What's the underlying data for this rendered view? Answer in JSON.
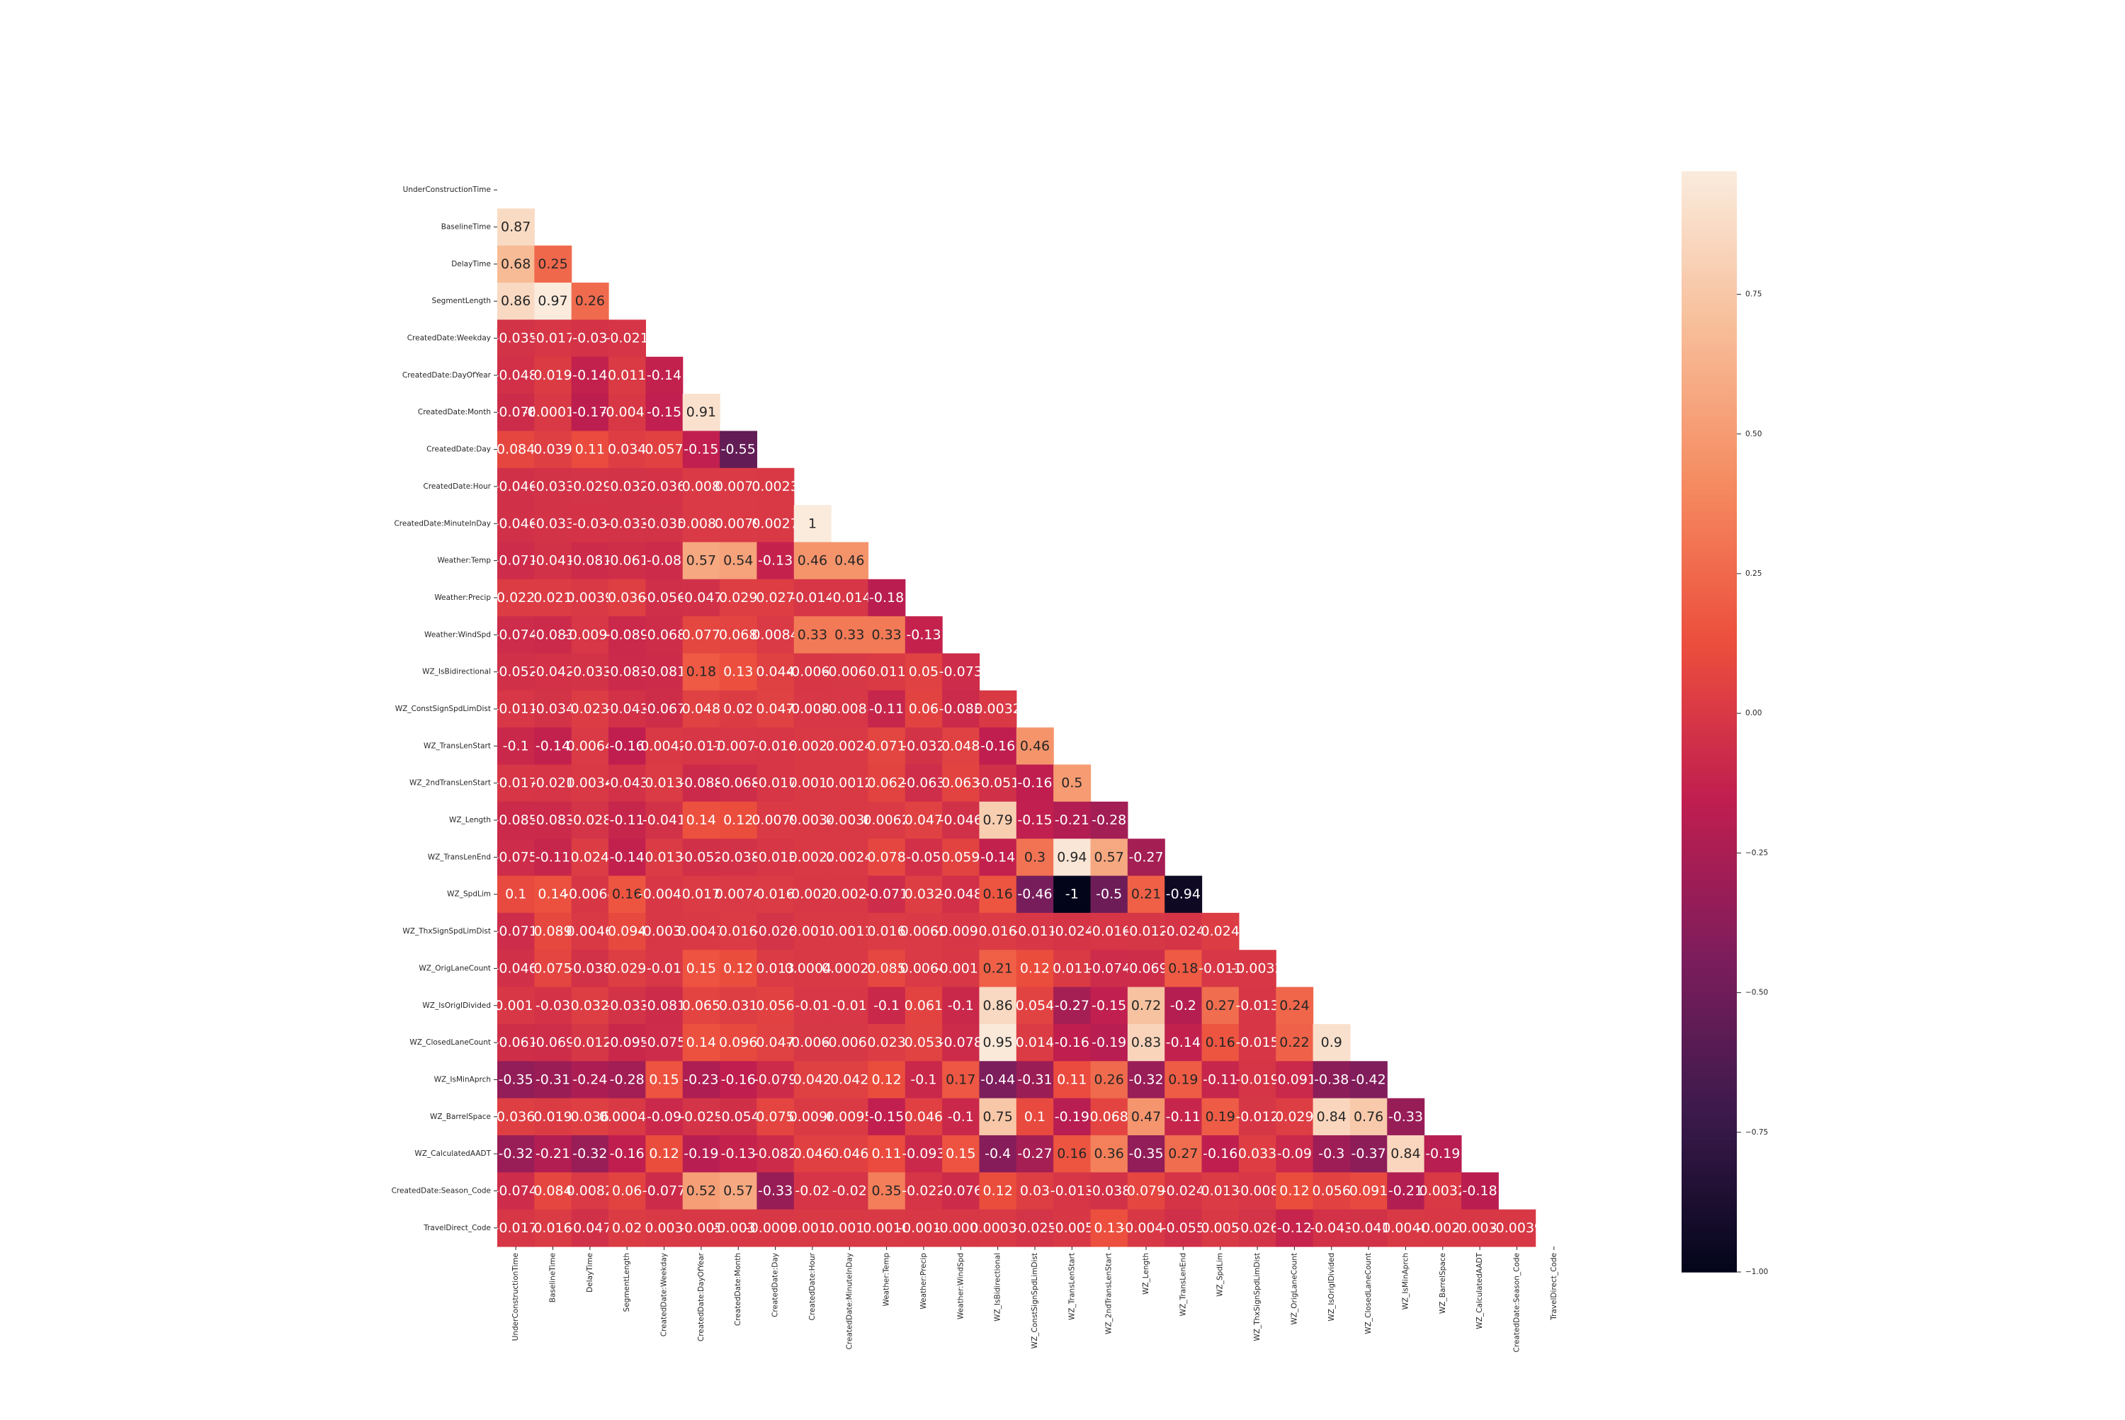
{
  "chart_data": {
    "type": "heatmap",
    "title": "",
    "xlabel": "",
    "ylabel": "",
    "variables": [
      "UnderConstructionTime",
      "BaselineTime",
      "DelayTime",
      "SegmentLength",
      "CreatedDate:Weekday",
      "CreatedDate:DayOfYear",
      "CreatedDate:Month",
      "CreatedDate:Day",
      "CreatedDate:Hour",
      "CreatedDate:MinuteInDay",
      "Weather:Temp",
      "Weather:Precip",
      "Weather:WindSpd",
      "WZ_IsBidirectional",
      "WZ_ConstSignSpdLimDist",
      "WZ_TransLenStart",
      "WZ_2ndTransLenStart",
      "WZ_Length",
      "WZ_TransLenEnd",
      "WZ_SpdLim",
      "WZ_ThxSignSpdLimDist",
      "WZ_OrigLaneCount",
      "WZ_IsOrigIDivided",
      "WZ_ClosedLaneCount",
      "WZ_IsMinAprch",
      "WZ_BarrelSpace",
      "WZ_CalculatedAADT",
      "CreatedDate:Season_Code",
      "TravelDirect_Code"
    ],
    "x_tick_labels": [
      "UnderConstructionTime",
      "BaselineTime",
      "DelayTime",
      "SegmentLength",
      "CreatedDate:Weekday",
      "CreatedDate:DayOfYear",
      "CreatedDate:Month",
      "CreatedDate:Day",
      "CreatedDate:Hour",
      "CreatedDate:MinuteInDay",
      "Weather:Temp",
      "Weather:Precip",
      "Weather:WindSpd",
      "WZ_IsBidirectional",
      "WZ_ConstSignSpdLimDist",
      "WZ_TransLenStart",
      "WZ_2ndTransLenStart",
      "WZ_Length",
      "WZ_TransLenEnd",
      "WZ_SpdLim",
      "WZ_ThxSignSpdLimDist",
      "WZ_OrigLaneCount",
      "WZ_IsOrigIDivided",
      "WZ_ClosedLaneCount",
      "WZ_IsMinAprch",
      "WZ_BarrelSpace",
      "WZ_CalculatedAADT",
      "CreatedDate:Season_Code",
      "TravelDirect_Code"
    ],
    "y_tick_labels": [
      "UnderConstructionTime",
      "BaselineTime",
      "DelayTime",
      "SegmentLength",
      "CreatedDate:Weekday",
      "CreatedDate:DayOfYear",
      "CreatedDate:Month",
      "CreatedDate:Day",
      "CreatedDate:Hour",
      "CreatedDate:MinuteInDay",
      "Weather:Temp",
      "Weather:Precip",
      "Weather:WindSpd",
      "WZ_IsBidirectional",
      "WZ_ConstSignSpdLimDist",
      "WZ_TransLenStart",
      "WZ_2ndTransLenStart",
      "WZ_Length",
      "WZ_TransLenEnd",
      "WZ_SpdLim",
      "WZ_ThxSignSpdLimDist",
      "WZ_OrigLaneCount",
      "WZ_IsOrigIDivided",
      "WZ_ClosedLaneCount",
      "WZ_IsMinAprch",
      "WZ_BarrelSpace",
      "WZ_CalculatedAADT",
      "CreatedDate:Season_Code",
      "TravelDirect_Code"
    ],
    "mask": "upper triangle including diagonal",
    "lower_triangle": [
      [],
      [
        0.87
      ],
      [
        0.68,
        0.25
      ],
      [
        0.86,
        0.97,
        0.26
      ],
      [
        -0.035,
        -0.017,
        -0.03,
        -0.021
      ],
      [
        -0.048,
        0.019,
        -0.14,
        0.011,
        -0.14
      ],
      [
        -0.076,
        -0.00017,
        -0.17,
        -0.0047,
        -0.15,
        0.91
      ],
      [
        0.084,
        0.039,
        0.11,
        0.034,
        0.057,
        -0.15,
        -0.55
      ],
      [
        -0.046,
        -0.033,
        -0.029,
        -0.032,
        -0.036,
        0.008,
        0.0077,
        0.0023
      ],
      [
        -0.046,
        -0.033,
        -0.03,
        -0.033,
        -0.035,
        0.0081,
        0.0079,
        0.0027,
        1
      ],
      [
        -0.071,
        -0.041,
        -0.081,
        -0.061,
        -0.08,
        0.57,
        0.54,
        -0.13,
        0.46,
        0.46
      ],
      [
        0.022,
        0.021,
        0.0039,
        0.036,
        -0.056,
        -0.047,
        0.029,
        0.027,
        -0.014,
        -0.014,
        -0.18
      ],
      [
        -0.074,
        -0.083,
        -0.0096,
        -0.089,
        -0.068,
        0.077,
        0.068,
        0.0084,
        0.33,
        0.33,
        0.33,
        -0.13
      ],
      [
        -0.052,
        -0.042,
        -0.033,
        -0.083,
        -0.081,
        0.18,
        0.13,
        0.044,
        -0.0063,
        -0.0062,
        0.011,
        0.05,
        -0.073
      ],
      [
        -0.011,
        -0.034,
        0.023,
        -0.043,
        -0.067,
        0.048,
        0.02,
        0.047,
        -0.0089,
        -0.0088,
        -0.11,
        0.06,
        -0.083,
        0.0032
      ],
      [
        -0.1,
        -0.14,
        0.0064,
        -0.16,
        0.0042,
        -0.017,
        -0.0074,
        -0.016,
        0.0023,
        0.0024,
        0.071,
        -0.032,
        0.048,
        -0.16,
        0.46
      ],
      [
        -0.017,
        -0.021,
        0.0034,
        -0.043,
        0.013,
        -0.088,
        -0.068,
        -0.017,
        0.0011,
        0.0012,
        0.062,
        -0.063,
        0.063,
        -0.051,
        -0.16,
        0.5
      ],
      [
        -0.085,
        -0.083,
        -0.028,
        -0.11,
        -0.041,
        0.14,
        0.12,
        0.0079,
        0.0034,
        0.0036,
        0.0062,
        0.047,
        -0.046,
        0.79,
        -0.15,
        -0.21,
        -0.28
      ],
      [
        -0.075,
        -0.11,
        0.024,
        -0.14,
        0.013,
        -0.052,
        -0.038,
        -0.013,
        0.0022,
        0.0024,
        0.078,
        -0.05,
        0.059,
        -0.14,
        0.3,
        0.94,
        0.57,
        -0.27
      ],
      [
        0.1,
        0.14,
        -0.0064,
        0.16,
        -0.0042,
        0.017,
        0.0074,
        0.016,
        -0.0023,
        -0.0024,
        -0.071,
        0.032,
        -0.048,
        0.16,
        -0.46,
        -1,
        -0.5,
        0.21,
        -0.94
      ],
      [
        -0.071,
        0.089,
        0.0046,
        0.094,
        -0.0038,
        0.0047,
        0.016,
        -0.026,
        0.0011,
        0.0011,
        0.016,
        0.0069,
        -0.0095,
        0.016,
        -0.011,
        -0.024,
        -0.016,
        -0.012,
        -0.024,
        0.024
      ],
      [
        -0.046,
        0.075,
        -0.038,
        0.029,
        -0.01,
        0.15,
        0.12,
        0.013,
        0.00048,
        0.00026,
        0.085,
        0.0064,
        -0.0011,
        0.21,
        0.12,
        0.011,
        -0.074,
        -0.069,
        0.18,
        -0.011,
        -0.0032
      ],
      [
        -0.0011,
        -0.03,
        0.032,
        -0.033,
        -0.081,
        0.065,
        0.031,
        0.056,
        -0.01,
        -0.01,
        -0.1,
        0.061,
        -0.1,
        0.86,
        0.054,
        -0.27,
        -0.15,
        0.72,
        -0.2,
        0.27,
        -0.013,
        0.24
      ],
      [
        -0.061,
        -0.069,
        -0.012,
        -0.095,
        -0.075,
        0.14,
        0.096,
        0.047,
        -0.0062,
        -0.0061,
        0.023,
        0.053,
        -0.078,
        0.95,
        0.014,
        -0.16,
        -0.19,
        0.83,
        -0.14,
        0.16,
        -0.015,
        0.22,
        0.9
      ],
      [
        -0.35,
        -0.31,
        -0.24,
        -0.28,
        0.15,
        -0.23,
        -0.16,
        -0.079,
        0.042,
        0.042,
        0.12,
        -0.1,
        0.17,
        -0.44,
        -0.31,
        0.11,
        0.26,
        -0.32,
        0.19,
        -0.11,
        -0.019,
        -0.091,
        -0.38,
        -0.42
      ],
      [
        0.036,
        0.019,
        0.036,
        0.00047,
        -0.09,
        -0.025,
        -0.054,
        0.075,
        0.0096,
        0.0095,
        -0.15,
        0.046,
        -0.1,
        0.75,
        0.1,
        -0.19,
        0.068,
        0.47,
        -0.11,
        0.19,
        -0.012,
        0.029,
        0.84,
        0.76,
        -0.33
      ],
      [
        -0.32,
        -0.21,
        -0.32,
        -0.16,
        0.12,
        -0.19,
        -0.13,
        -0.082,
        0.046,
        0.046,
        0.11,
        -0.093,
        0.15,
        -0.4,
        -0.27,
        0.16,
        0.36,
        -0.35,
        0.27,
        -0.16,
        0.033,
        -0.09,
        -0.3,
        -0.37,
        0.84,
        -0.19
      ],
      [
        -0.074,
        0.084,
        0.0082,
        0.06,
        -0.077,
        0.52,
        0.57,
        -0.33,
        -0.02,
        -0.02,
        0.35,
        -0.022,
        -0.076,
        0.12,
        0.03,
        -0.013,
        -0.038,
        0.079,
        -0.024,
        0.013,
        -0.008,
        0.12,
        0.056,
        0.091,
        -0.21,
        0.0032,
        -0.18
      ],
      [
        -0.017,
        0.016,
        -0.047,
        0.02,
        0.003,
        -0.005,
        -0.0037,
        -0.00091,
        0.0011,
        0.0011,
        0.0016,
        -0.0014,
        -0.0009,
        0.00032,
        -0.025,
        -0.005,
        0.13,
        -0.0048,
        -0.055,
        0.005,
        -0.026,
        -0.12,
        -0.043,
        -0.041,
        0.0046,
        -0.0026,
        -0.0031,
        -0.0039
      ]
    ],
    "colorbar": {
      "vmin": -1.0,
      "vmax": 0.97,
      "ticks": [
        -1.0,
        -0.75,
        -0.5,
        -0.25,
        0.0,
        0.25,
        0.5,
        0.75
      ],
      "tick_labels": [
        "−1.00",
        "−0.75",
        "−0.50",
        "−0.25",
        "0.00",
        "0.25",
        "0.50",
        "0.75"
      ]
    },
    "colormap": "rocket",
    "colormap_stops": [
      "#03051a",
      "#3b1a4b",
      "#7d1d5c",
      "#c01e4f",
      "#ec4e3d",
      "#f58a60",
      "#f7bd98",
      "#faebdd"
    ],
    "grid": false,
    "legend": "colorbar right"
  }
}
